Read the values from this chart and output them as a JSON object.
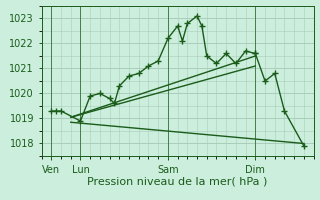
{
  "bg_color": "#cceedd",
  "grid_color": "#aaccbb",
  "line_color": "#1a5c1a",
  "xlabel": "Pression niveau de la mer( hPa )",
  "xlabel_fontsize": 8,
  "tick_label_color": "#1a5c1a",
  "ylim": [
    1017.5,
    1023.5
  ],
  "yticks": [
    1018,
    1019,
    1020,
    1021,
    1022,
    1023
  ],
  "xlim": [
    0,
    28
  ],
  "day_positions": [
    1,
    4,
    13,
    22
  ],
  "day_labels": [
    "Ven",
    "Lun",
    "Sam",
    "Dim"
  ],
  "vline_positions": [
    1,
    4,
    13,
    22
  ],
  "series1_x": [
    1,
    1.5,
    2,
    4,
    5,
    6,
    7,
    7.5,
    8,
    9,
    10,
    11,
    12,
    13,
    14,
    14.5,
    15,
    16,
    16.5,
    17,
    18,
    19,
    20,
    21,
    22
  ],
  "series1_y": [
    1019.3,
    1019.3,
    1019.3,
    1018.9,
    1019.9,
    1020.0,
    1019.8,
    1019.6,
    1020.3,
    1020.7,
    1020.8,
    1021.1,
    1021.3,
    1022.2,
    1022.7,
    1022.1,
    1022.8,
    1023.1,
    1022.7,
    1021.5,
    1021.2,
    1021.6,
    1021.2,
    1021.7,
    1021.6
  ],
  "series2_x": [
    22,
    23,
    24,
    25,
    27
  ],
  "series2_y": [
    1021.6,
    1020.5,
    1020.8,
    1019.3,
    1017.9
  ],
  "line2_x": [
    3,
    22
  ],
  "line2_y": [
    1019.05,
    1021.1
  ],
  "line3_x": [
    3,
    22
  ],
  "line3_y": [
    1019.05,
    1021.5
  ],
  "line4_x": [
    3,
    27
  ],
  "line4_y": [
    1018.85,
    1018.0
  ]
}
